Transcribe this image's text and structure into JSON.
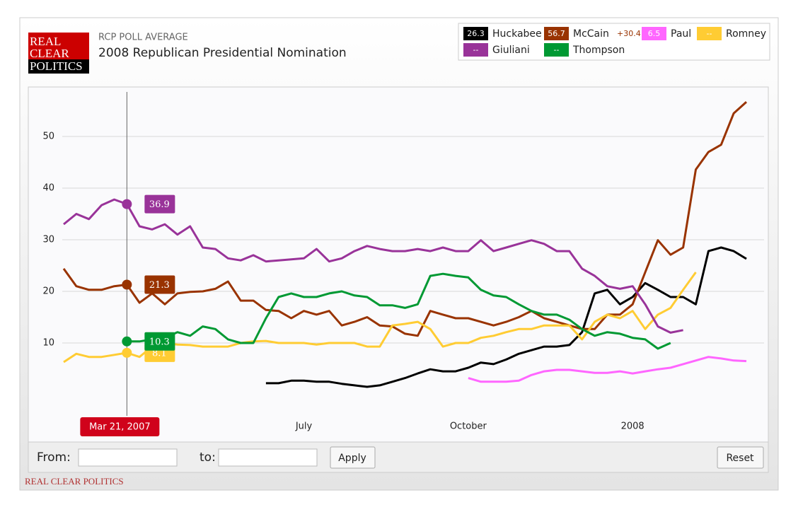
{
  "header": {
    "logo": [
      "REAL",
      "CLEAR",
      "POLITICS"
    ],
    "subtitle": "RCP POLL AVERAGE",
    "title": "2008 Republican Presidential Nomination"
  },
  "legend": {
    "values": [
      "26.3",
      "56.7",
      "6.5",
      "--",
      "--",
      "--"
    ],
    "lead": "+30.4"
  },
  "cursor": {
    "label": "Mar 21, 2007"
  },
  "controls": {
    "from": "From:",
    "to": "to:",
    "apply": "Apply",
    "reset": "Reset"
  },
  "footer": "REAL CLEAR POLITICS",
  "chart_data": {
    "type": "line",
    "categories": [
      null,
      null,
      null,
      null,
      null,
      null,
      null,
      null,
      null,
      null,
      null,
      null,
      null,
      null,
      null,
      null,
      null,
      null,
      null,
      "July",
      null,
      null,
      null,
      null,
      null,
      null,
      null,
      null,
      null,
      null,
      null,
      null,
      "October",
      null,
      null,
      null,
      null,
      null,
      null,
      null,
      null,
      null,
      null,
      null,
      null,
      "2008",
      null,
      null,
      null,
      null,
      null,
      null,
      null,
      null,
      null
    ],
    "ylim": [
      0,
      59
    ],
    "yticks": [
      10,
      20,
      30,
      40,
      50
    ],
    "grid": true,
    "series": [
      {
        "name": "Huckabee",
        "color": "#000000",
        "values": [
          null,
          null,
          null,
          null,
          null,
          null,
          null,
          null,
          null,
          null,
          null,
          null,
          null,
          null,
          null,
          null,
          2.2,
          2.2,
          2.7,
          2.7,
          2.5,
          2.5,
          2.1,
          1.8,
          1.5,
          1.8,
          2.5,
          3.2,
          4.1,
          4.9,
          4.5,
          4.5,
          5.2,
          6.2,
          5.9,
          6.8,
          7.9,
          8.6,
          9.3,
          9.3,
          9.6,
          12.1,
          19.6,
          20.3,
          17.5,
          18.9,
          21.6,
          20.3,
          18.9,
          18.9,
          17.5,
          27.8,
          28.5,
          27.8,
          26.3
        ]
      },
      {
        "name": "McCain",
        "color": "#993300",
        "values": [
          24.4,
          21,
          20.3,
          20.3,
          21,
          21.3,
          17.8,
          19.6,
          17.5,
          19.6,
          19.9,
          20,
          20.5,
          21.9,
          18.2,
          18.2,
          16.4,
          16.2,
          14.8,
          16.2,
          15.5,
          16.2,
          13.4,
          14.1,
          15,
          13.4,
          13.2,
          11.8,
          11.4,
          16.2,
          15.5,
          14.8,
          14.8,
          14.1,
          13.4,
          14.1,
          15,
          16.2,
          14.8,
          14.1,
          13.4,
          12.7,
          12.7,
          15.5,
          15.5,
          17.5,
          23.7,
          29.9,
          27.1,
          28.5,
          43.6,
          47,
          48.4,
          54.5,
          56.7
        ]
      },
      {
        "name": "Paul",
        "color": "#ff66ff",
        "values": [
          null,
          null,
          null,
          null,
          null,
          null,
          null,
          null,
          null,
          null,
          null,
          null,
          null,
          null,
          null,
          null,
          null,
          null,
          null,
          null,
          null,
          null,
          null,
          null,
          null,
          null,
          null,
          null,
          null,
          null,
          null,
          null,
          3.2,
          2.5,
          2.5,
          2.5,
          2.7,
          3.8,
          4.5,
          4.8,
          4.8,
          4.5,
          4.2,
          4.2,
          4.5,
          4.1,
          4.5,
          4.9,
          5.2,
          5.9,
          6.6,
          7.3,
          7,
          6.6,
          6.5
        ]
      },
      {
        "name": "Romney",
        "color": "#ffcc33",
        "values": [
          6.3,
          7.9,
          7.3,
          7.3,
          7.7,
          8.1,
          7.3,
          9.3,
          10,
          9.7,
          9.6,
          9.3,
          9.3,
          9.3,
          10,
          10.3,
          10.4,
          10,
          10,
          10,
          9.7,
          10,
          10,
          10,
          9.3,
          9.3,
          13.4,
          13.7,
          14.1,
          12.7,
          9.3,
          10,
          10,
          11,
          11.4,
          12.1,
          12.7,
          12.7,
          13.4,
          13.4,
          13.4,
          10.7,
          14.1,
          15.5,
          14.8,
          16.2,
          12.7,
          15.5,
          16.8,
          20.3,
          23.7,
          null,
          null,
          null,
          null
        ]
      },
      {
        "name": "Giuliani",
        "color": "#993399",
        "values": [
          33,
          35,
          34,
          36.7,
          37.8,
          36.9,
          32.6,
          32,
          33,
          31,
          32.6,
          28.5,
          28.2,
          26.4,
          26,
          27,
          25.8,
          26,
          26.2,
          26.4,
          28.2,
          25.8,
          26.4,
          27.8,
          28.8,
          28.2,
          27.8,
          27.8,
          28.2,
          27.8,
          28.5,
          27.8,
          27.8,
          29.9,
          27.8,
          28.5,
          29.2,
          29.9,
          29.2,
          27.8,
          27.8,
          24.4,
          23,
          21,
          20.5,
          21,
          17.5,
          13.2,
          12,
          12.5,
          null,
          null,
          null,
          null,
          null
        ]
      },
      {
        "name": "Thompson",
        "color": "#009933",
        "values": [
          null,
          null,
          null,
          null,
          null,
          10.3,
          10.3,
          10.7,
          11,
          12.1,
          11.4,
          13.2,
          12.7,
          10.7,
          10,
          10,
          14.8,
          18.9,
          19.6,
          18.9,
          18.9,
          19.6,
          20,
          19.2,
          18.9,
          17.3,
          17.3,
          16.8,
          17.5,
          23,
          23.4,
          23,
          22.7,
          20.3,
          19.2,
          18.9,
          17.5,
          16.2,
          15.5,
          15.5,
          14.5,
          12.7,
          11.4,
          12.1,
          11.8,
          11,
          10.7,
          8.9,
          10,
          null,
          null,
          null,
          null,
          null,
          null
        ]
      }
    ]
  }
}
